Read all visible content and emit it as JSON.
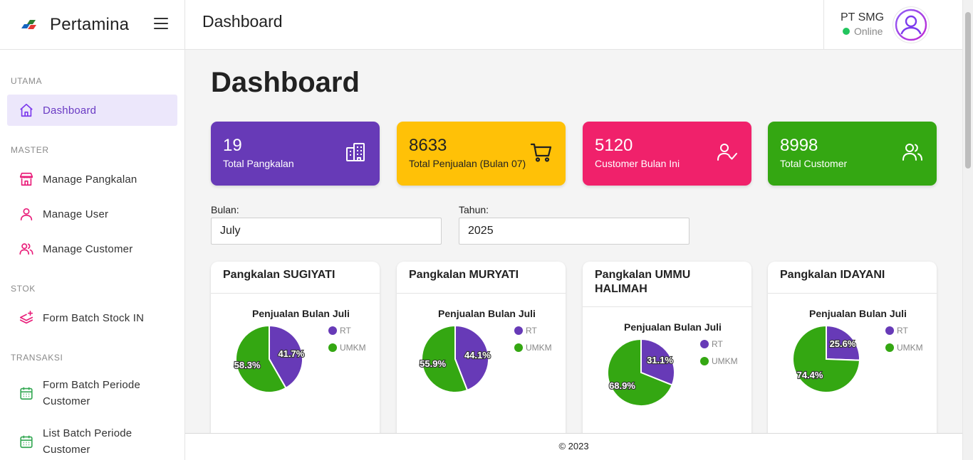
{
  "brand": {
    "name": "Pertamina"
  },
  "sidebar": {
    "sections": {
      "utama": "UTAMA",
      "master": "MASTER",
      "stok": "STOK",
      "transaksi": "TRANSAKSI"
    },
    "items": [
      {
        "label": "Dashboard",
        "icon": "home-icon"
      },
      {
        "label": "Manage Pangkalan",
        "icon": "store-icon"
      },
      {
        "label": "Manage User",
        "icon": "user-icon"
      },
      {
        "label": "Manage Customer",
        "icon": "users-icon"
      },
      {
        "label": "Form Batch Stock IN",
        "icon": "layers-plus-icon"
      },
      {
        "label": "Form Batch Periode Customer",
        "icon": "calendar-icon"
      },
      {
        "label": "List Batch Periode Customer",
        "icon": "calendar-icon"
      }
    ]
  },
  "header": {
    "title": "Dashboard",
    "user": {
      "name": "PT SMG",
      "status": "Online"
    }
  },
  "main": {
    "heading": "Dashboard",
    "stats": [
      {
        "value": "19",
        "label": "Total Pangkalan",
        "color": "#673ab7",
        "icon": "building-icon"
      },
      {
        "value": "8633",
        "label": "Total Penjualan (Bulan 07)",
        "color": "#ffc107",
        "icon": "cart-icon"
      },
      {
        "value": "5120",
        "label": "Customer Bulan Ini",
        "color": "#f0216b",
        "icon": "user-check-icon"
      },
      {
        "value": "8998",
        "label": "Total Customer",
        "color": "#34a712",
        "icon": "users-icon"
      }
    ],
    "filters": {
      "bulan": {
        "label": "Bulan:",
        "value": "July"
      },
      "tahun": {
        "label": "Tahun:",
        "value": "2025"
      }
    },
    "footer": "© 2023"
  },
  "chart_data": [
    {
      "type": "pie",
      "card_title": "Pangkalan SUGIYATI",
      "title": "Penjualan Bulan Juli",
      "categories": [
        "RT",
        "UMKM"
      ],
      "values": [
        41.7,
        58.3
      ],
      "colors": [
        "#673ab7",
        "#34a712"
      ]
    },
    {
      "type": "pie",
      "card_title": "Pangkalan MURYATI",
      "title": "Penjualan Bulan Juli",
      "categories": [
        "RT",
        "UMKM"
      ],
      "values": [
        44.1,
        55.9
      ],
      "colors": [
        "#673ab7",
        "#34a712"
      ]
    },
    {
      "type": "pie",
      "card_title": "Pangkalan UMMU HALIMAH",
      "title": "Penjualan Bulan Juli",
      "categories": [
        "RT",
        "UMKM"
      ],
      "values": [
        31.1,
        68.9
      ],
      "colors": [
        "#673ab7",
        "#34a712"
      ]
    },
    {
      "type": "pie",
      "card_title": "Pangkalan IDAYANI",
      "title": "Penjualan Bulan Juli",
      "categories": [
        "RT",
        "UMKM"
      ],
      "values": [
        25.6,
        74.4
      ],
      "colors": [
        "#673ab7",
        "#34a712"
      ]
    }
  ]
}
